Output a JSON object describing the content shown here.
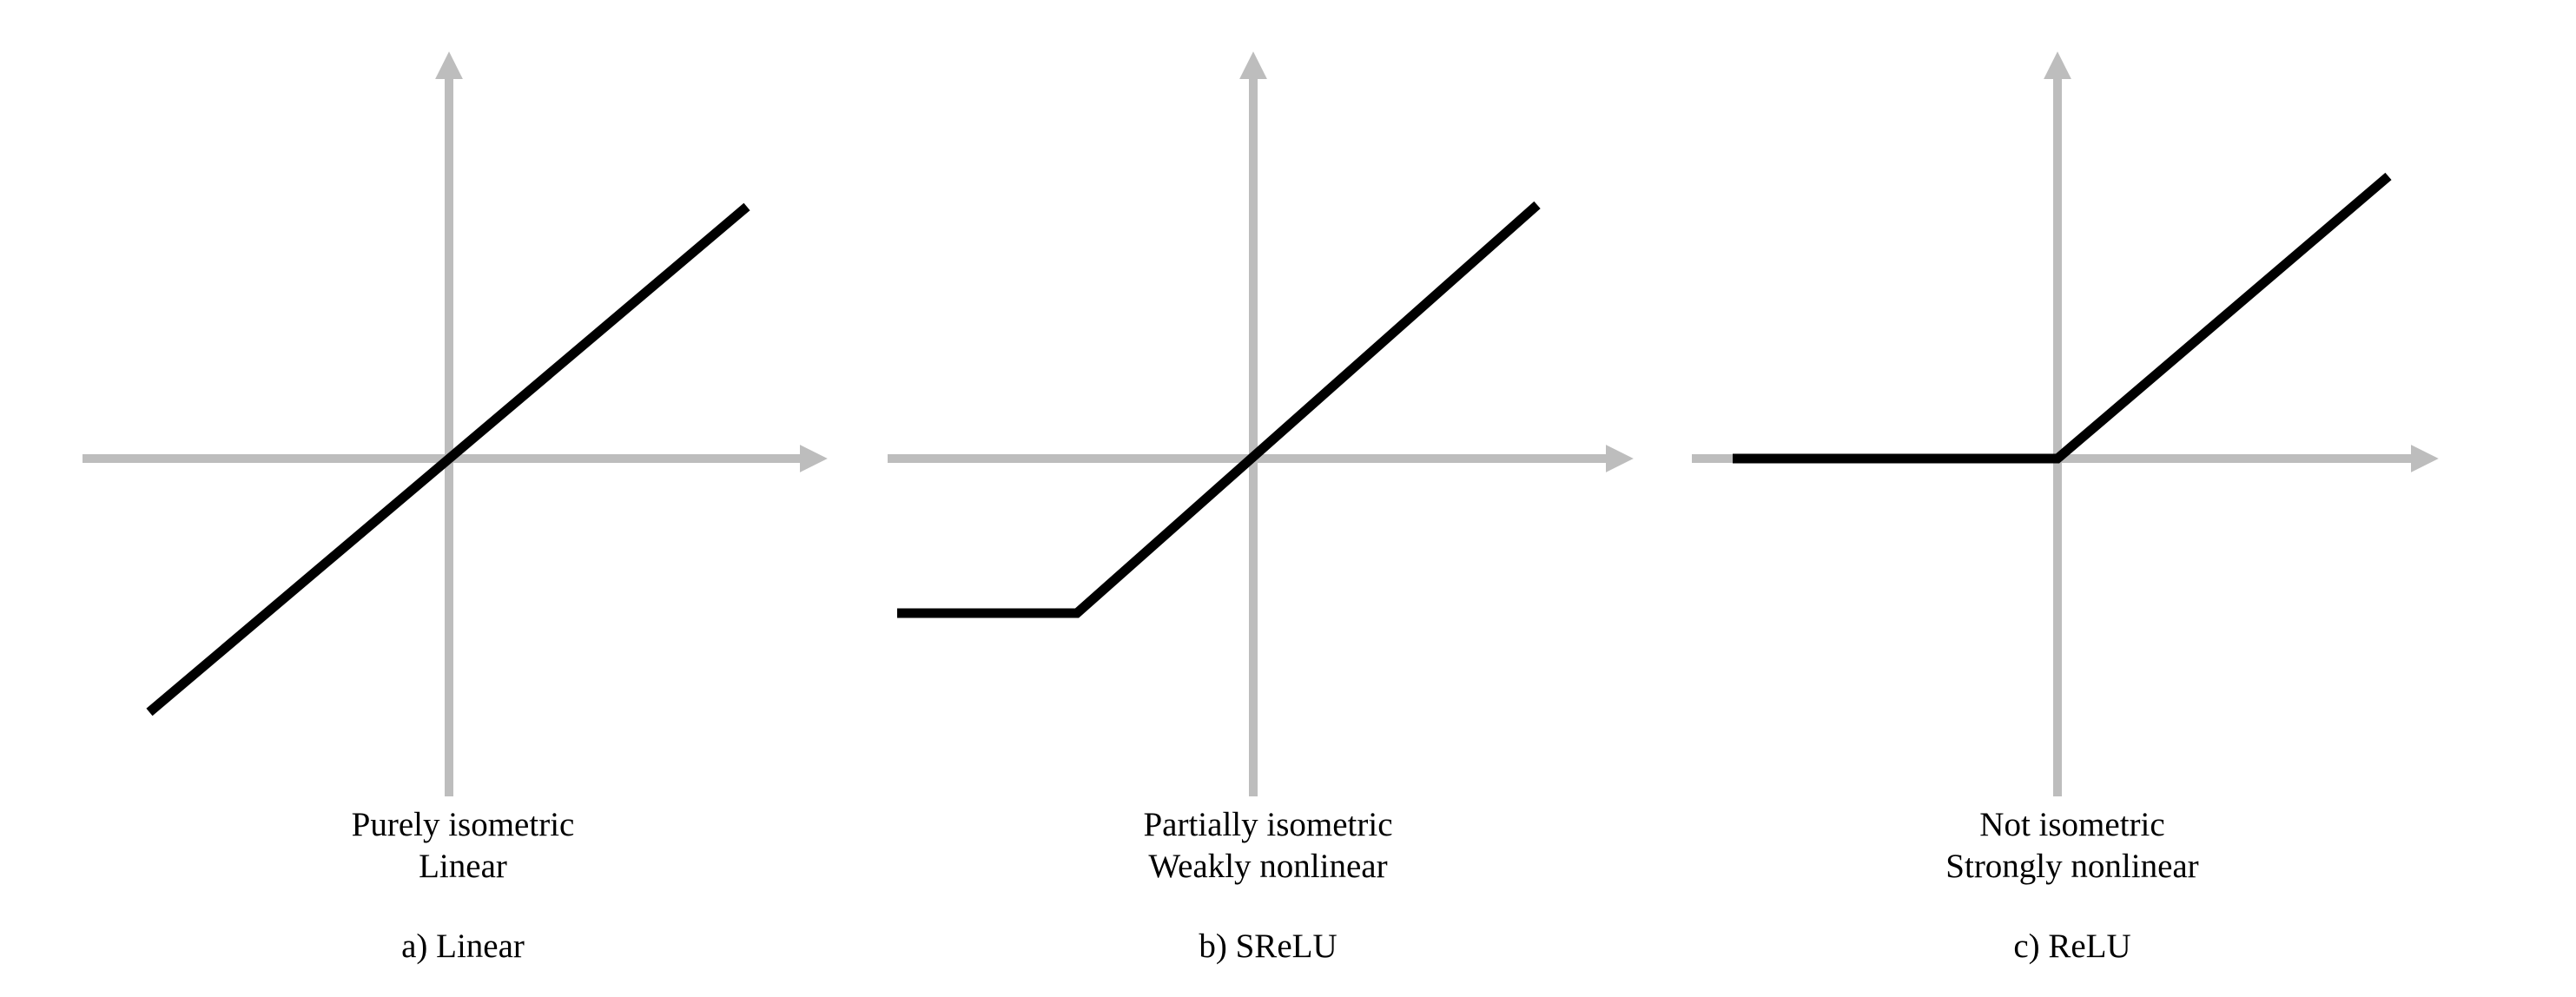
{
  "colors": {
    "axis": "#bdbdbd",
    "curve": "#000000",
    "text": "#000000"
  },
  "panels": [
    {
      "id": "linear",
      "function": "linear",
      "description": [
        "Purely isometric",
        "Linear"
      ],
      "label": "a) Linear"
    },
    {
      "id": "srelu",
      "function": "srelu",
      "description": [
        "Partially isometric",
        "Weakly nonlinear"
      ],
      "label": "b) SReLU"
    },
    {
      "id": "relu",
      "function": "relu",
      "description": [
        "Not isometric",
        "Strongly nonlinear"
      ],
      "label": "c) ReLU"
    }
  ]
}
